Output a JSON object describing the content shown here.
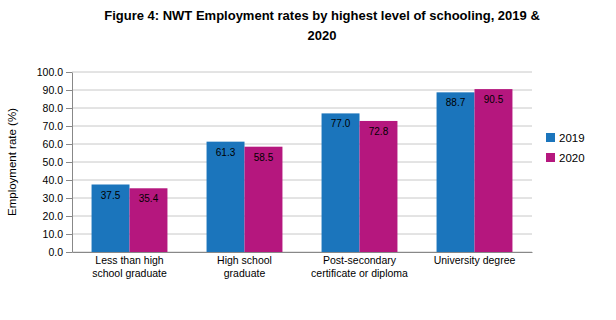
{
  "chart_data": {
    "type": "bar",
    "title": "Figure 4: NWT Employment rates by highest level of schooling, 2019 & 2020",
    "y_label": "Employment rate (%)",
    "categories": [
      "Less than high school graduate",
      "High school graduate",
      "Post-secondary certificate or diploma",
      "University degree"
    ],
    "series": [
      {
        "name": "2019",
        "color": "#1b75bc",
        "values": [
          37.5,
          61.3,
          77.0,
          88.7
        ],
        "value_labels": [
          "37.5",
          "61.3",
          "77.0",
          "88.7"
        ]
      },
      {
        "name": "2020",
        "color": "#b5177e",
        "values": [
          35.4,
          58.5,
          72.8,
          90.5
        ]
      }
    ],
    "ylim": [
      0,
      100
    ],
    "yticks": [
      {
        "value": 0,
        "label": "0.0"
      },
      {
        "value": 10,
        "label": "10.0"
      },
      {
        "value": 20,
        "label": "20.0"
      },
      {
        "value": 30,
        "label": "30.0"
      },
      {
        "value": 40,
        "label": "40.0"
      },
      {
        "value": 50,
        "label": "50.0"
      },
      {
        "value": 60,
        "label": "60.0"
      },
      {
        "value": 70,
        "label": "70.0"
      },
      {
        "value": 80,
        "label": "80.0"
      },
      {
        "value": 90,
        "label": "90.0"
      },
      {
        "value": 100,
        "label": "100.0"
      }
    ],
    "grid": true,
    "legend": "right",
    "data_labels": true
  }
}
